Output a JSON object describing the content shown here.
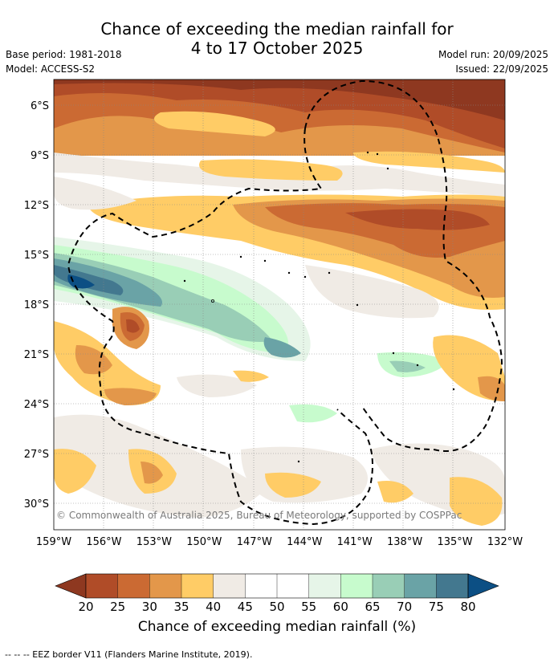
{
  "title": {
    "line1": "Chance of exceeding the median rainfall for",
    "line2": "4 to 17 October 2025"
  },
  "meta": {
    "base_period": "Base period: 1981-2018",
    "model": "Model: ACCESS-S2",
    "model_run": "Model run: 20/09/2025",
    "issued": "Issued: 22/09/2025"
  },
  "map": {
    "lat_labels": [
      "6°S",
      "9°S",
      "12°S",
      "15°S",
      "18°S",
      "21°S",
      "24°S",
      "27°S",
      "30°S"
    ],
    "lon_labels": [
      "159°W",
      "156°W",
      "153°W",
      "150°W",
      "147°W",
      "144°W",
      "141°W",
      "138°W",
      "135°W",
      "132°W"
    ],
    "copyright": "© Commonwealth of Australia 2025, Bureau of Meteorology, supported by COSPPac",
    "extent": {
      "lon_min": -159,
      "lon_max": -132,
      "lat_min": -31.5,
      "lat_max": -4.5
    }
  },
  "colorbar": {
    "ticks": [
      "20",
      "25",
      "30",
      "35",
      "40",
      "45",
      "50",
      "55",
      "60",
      "65",
      "70",
      "75",
      "80"
    ],
    "colors": [
      "#8e3820",
      "#b04c28",
      "#cb6a33",
      "#e3974a",
      "#ffcc66",
      "#f0ebe5",
      "#ffffff",
      "#ffffff",
      "#e6f5e8",
      "#c7fbcd",
      "#99ceb6",
      "#6aa3a6",
      "#43788f",
      "#0c4f84"
    ],
    "label": "Chance of exceeding median rainfall (%)"
  },
  "footer": "--  --  -- EEZ border V11 (Flanders Marine Institute, 2019)."
}
